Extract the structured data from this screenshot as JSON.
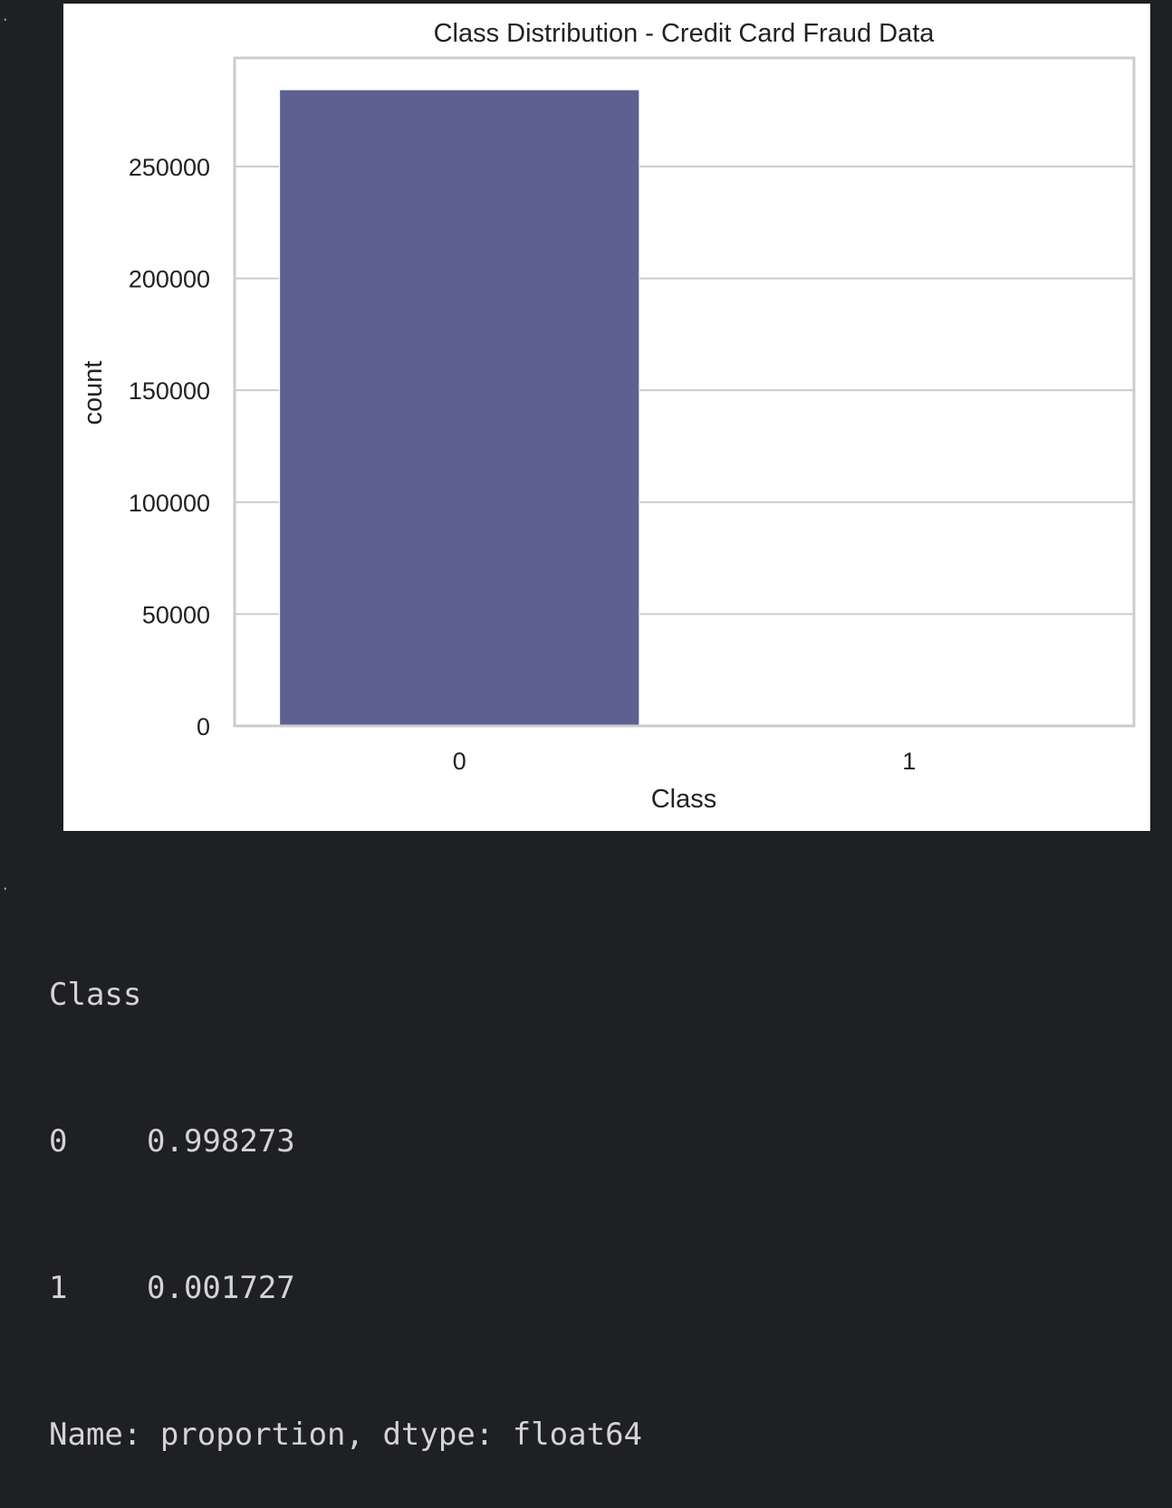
{
  "markers": [
    ".",
    "."
  ],
  "chart_data": {
    "type": "bar",
    "title": "Class Distribution - Credit Card Fraud Data",
    "xlabel": "Class",
    "ylabel": "count",
    "categories": [
      "0",
      "1"
    ],
    "values": [
      284315,
      492
    ],
    "ylim": [
      0,
      298531
    ],
    "yticks": [
      0,
      50000,
      100000,
      150000,
      200000,
      250000
    ],
    "ytick_labels": [
      "0",
      "50000",
      "100000",
      "150000",
      "200000",
      "250000"
    ],
    "grid": "horizontal",
    "bar_color": "#5d6190"
  },
  "output": {
    "header": "Class",
    "rows": [
      {
        "index": "0",
        "value": "0.998273"
      },
      {
        "index": "1",
        "value": "0.001727"
      }
    ],
    "footer": "Name: proportion, dtype: float64"
  }
}
